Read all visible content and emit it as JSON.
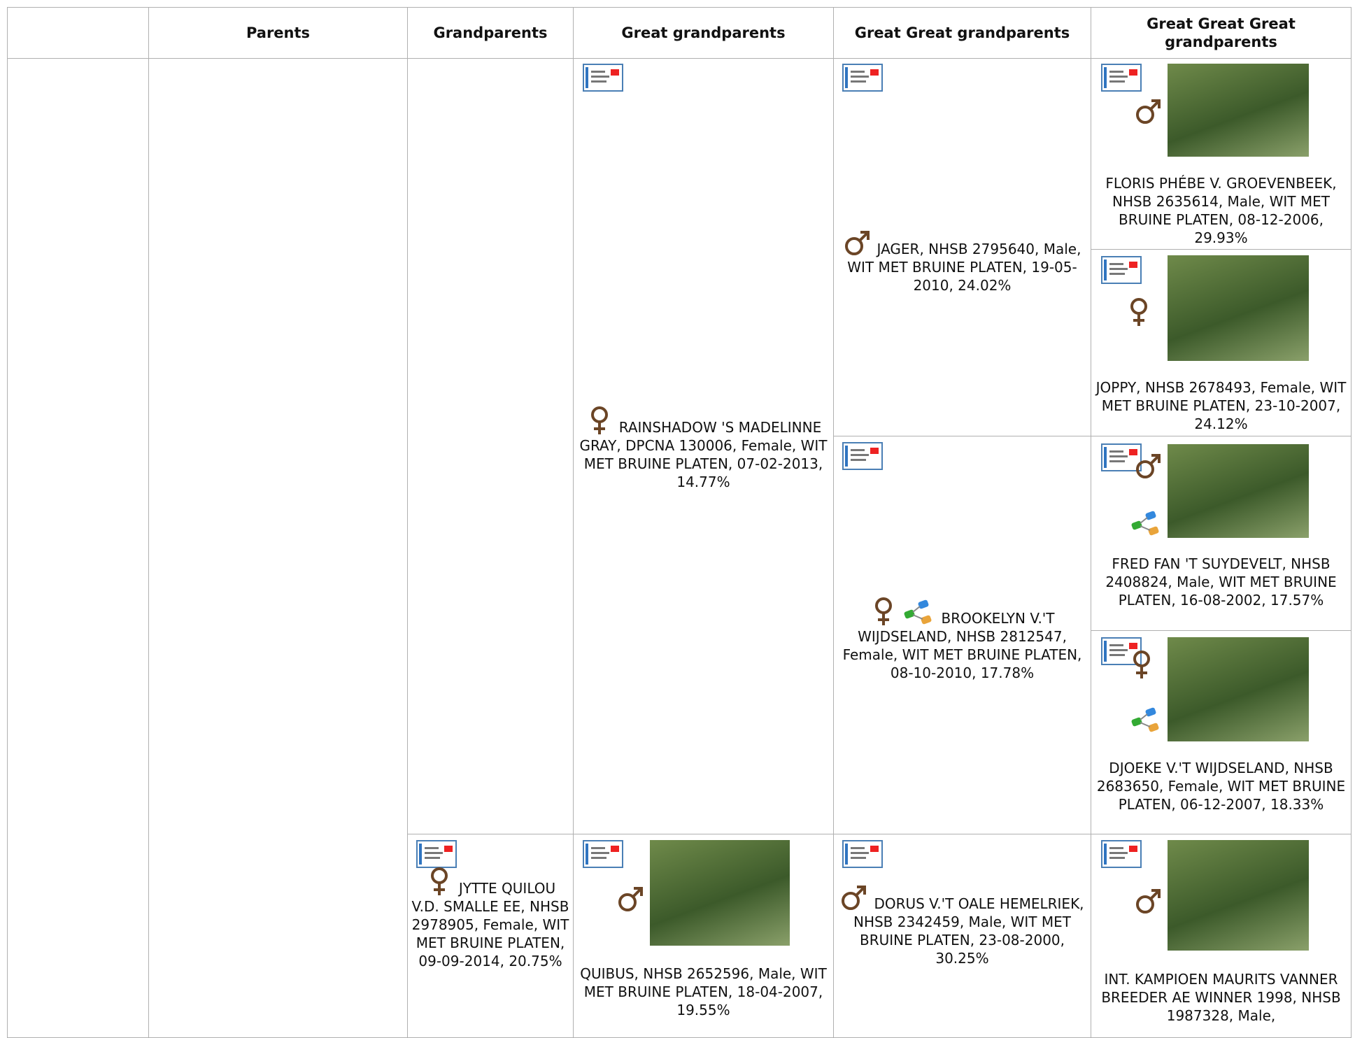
{
  "header": {
    "columns": [
      "Parents",
      "Grandparents",
      "Great grandparents",
      "Great Great grandparents",
      "Great Great Great grandparents"
    ]
  },
  "dogs": [
    {
      "text": "FLORIS PHÉBE V. GROEVENBEEK, NHSB 2635614, Male, WIT MET BRUINE PLATEN, 08-12-2006, 29.93%"
    },
    {
      "text": "JOPPY, NHSB 2678493, Female, WIT MET BRUINE PLATEN, 23-10-2007, 24.12%"
    },
    {
      "text": "FRED FAN 'T SUYDEVELT, NHSB 2408824, Male, WIT MET BRUINE PLATEN, 16-08-2002, 17.57%"
    },
    {
      "text": "DJOEKE V.'T WIJDSELAND, NHSB 2683650, Female, WIT MET BRUINE PLATEN, 06-12-2007, 18.33%"
    },
    {
      "text": "INT. KAMPIOEN MAURITS VANNER BREEDER AE WINNER 1998, NHSB 1987328, Male,"
    },
    {
      "text": "JAGER, NHSB 2795640, Male, WIT MET BRUINE PLATEN, 19-05-2010, 24.02%"
    },
    {
      "text": "BROOKELYN V.'T WIJDSELAND, NHSB 2812547, Female, WIT MET BRUINE PLATEN, 08-10-2010, 17.78%"
    },
    {
      "text": "DORUS V.'T OALE HEMELRIEK, NHSB 2342459, Male, WIT MET BRUINE PLATEN, 23-08-2000, 30.25%"
    },
    {
      "text": "RAINSHADOW 'S MADELINNE GRAY, DPCNA 130006, Female, WIT MET BRUINE PLATEN, 07-02-2013, 14.77%"
    },
    {
      "text": "QUIBUS, NHSB 2652596, Male, WIT MET BRUINE PLATEN, 18-04-2007, 19.55%"
    },
    {
      "text": "JYTTE QUILOU V.D. SMALLE EE, NHSB 2978905, Female, WIT MET BRUINE PLATEN, 09-09-2014, 20.75%"
    }
  ]
}
